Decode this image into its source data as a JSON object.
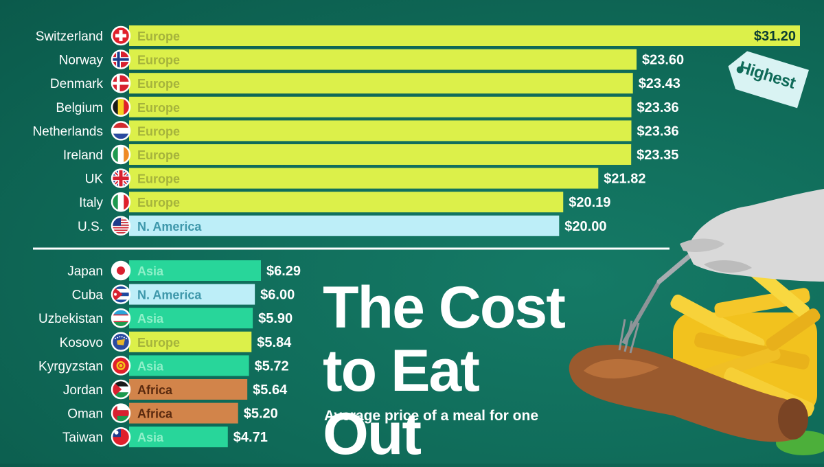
{
  "headline": {
    "line1": "The Cost",
    "line2": "to Eat Out"
  },
  "subtitle": "Average price of a meal for one",
  "badge": "Highest",
  "colors": {
    "Europe": "#dcf04a",
    "N. America": "#bdeef8",
    "Asia": "#28d69a",
    "Africa": "#d2844a",
    "europe_text": "#a5b33c",
    "namerica_text": "#3f98ab",
    "asia_text": "#8ff0c9",
    "africa_text": "#5a2a0f"
  },
  "chart_data": [
    {
      "type": "bar",
      "orientation": "horizontal",
      "categories": [
        "Switzerland",
        "Norway",
        "Denmark",
        "Belgium",
        "Netherlands",
        "Ireland",
        "UK",
        "Italy",
        "U.S."
      ],
      "regions": [
        "Europe",
        "Europe",
        "Europe",
        "Europe",
        "Europe",
        "Europe",
        "Europe",
        "Europe",
        "N. America"
      ],
      "values": [
        31.2,
        23.6,
        23.43,
        23.36,
        23.36,
        23.35,
        21.82,
        20.19,
        20.0
      ],
      "labels": [
        "$31.20",
        "$23.60",
        "$23.43",
        "$23.36",
        "$23.36",
        "$23.35",
        "$21.82",
        "$20.19",
        "$20.00"
      ],
      "flags": [
        "switzerland-flag-icon",
        "norway-flag-icon",
        "denmark-flag-icon",
        "belgium-flag-icon",
        "netherlands-flag-icon",
        "ireland-flag-icon",
        "uk-flag-icon",
        "italy-flag-icon",
        "us-flag-icon"
      ]
    },
    {
      "type": "bar",
      "orientation": "horizontal",
      "categories": [
        "Japan",
        "Cuba",
        "Uzbekistan",
        "Kosovo",
        "Kyrgyzstan",
        "Jordan",
        "Oman",
        "Taiwan"
      ],
      "regions": [
        "Asia",
        "N. America",
        "Asia",
        "Europe",
        "Asia",
        "Africa",
        "Africa",
        "Asia"
      ],
      "values": [
        6.29,
        6.0,
        5.9,
        5.84,
        5.72,
        5.64,
        5.2,
        4.71
      ],
      "labels": [
        "$6.29",
        "$6.00",
        "$5.90",
        "$5.84",
        "$5.72",
        "$5.64",
        "$5.20",
        "$4.71"
      ],
      "flags": [
        "japan-flag-icon",
        "cuba-flag-icon",
        "uzbekistan-flag-icon",
        "kosovo-flag-icon",
        "kyrgyzstan-flag-icon",
        "jordan-flag-icon",
        "oman-flag-icon",
        "taiwan-flag-icon"
      ]
    }
  ]
}
